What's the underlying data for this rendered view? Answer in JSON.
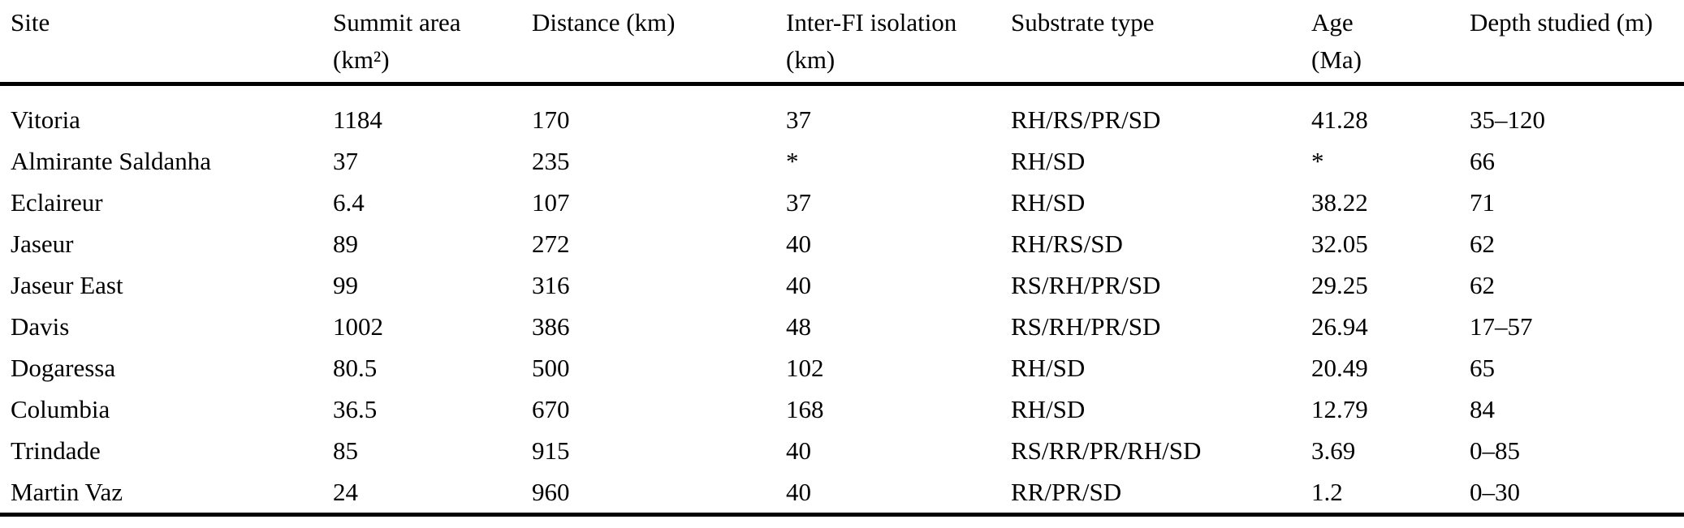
{
  "table": {
    "columns": [
      {
        "line1": "Site",
        "line2": ""
      },
      {
        "line1": "Summit area",
        "line2": "(km²)"
      },
      {
        "line1": "Distance (km)",
        "line2": ""
      },
      {
        "line1": "Inter-FI isolation",
        "line2": "(km)"
      },
      {
        "line1": "Substrate type",
        "line2": ""
      },
      {
        "line1": "Age",
        "line2": "(Ma)"
      },
      {
        "line1": "Depth studied (m)",
        "line2": ""
      }
    ],
    "rows": [
      [
        "Vitoria",
        "1184",
        "170",
        "37",
        "RH/RS/PR/SD",
        "41.28",
        "35–120"
      ],
      [
        "Almirante Saldanha",
        "37",
        "235",
        "*",
        "RH/SD",
        "*",
        "66"
      ],
      [
        "Eclaireur",
        "6.4",
        "107",
        "37",
        "RH/SD",
        "38.22",
        "71"
      ],
      [
        "Jaseur",
        "89",
        "272",
        "40",
        "RH/RS/SD",
        "32.05",
        "62"
      ],
      [
        "Jaseur East",
        "99",
        "316",
        "40",
        "RS/RH/PR/SD",
        "29.25",
        "62"
      ],
      [
        "Davis",
        "1002",
        "386",
        "48",
        "RS/RH/PR/SD",
        "26.94",
        "17–57"
      ],
      [
        "Dogaressa",
        "80.5",
        "500",
        "102",
        "RH/SD",
        "20.49",
        "65"
      ],
      [
        "Columbia",
        "36.5",
        "670",
        "168",
        "RH/SD",
        "12.79",
        "84"
      ],
      [
        "Trindade",
        "85",
        "915",
        "40",
        "RS/RR/PR/RH/SD",
        "3.69",
        "0–85"
      ],
      [
        "Martin Vaz",
        "24",
        "960",
        "40",
        "RR/PR/SD",
        "1.2",
        "0–30"
      ]
    ]
  },
  "colors": {
    "text": "#000000",
    "background": "#ffffff",
    "rule": "#000000"
  }
}
